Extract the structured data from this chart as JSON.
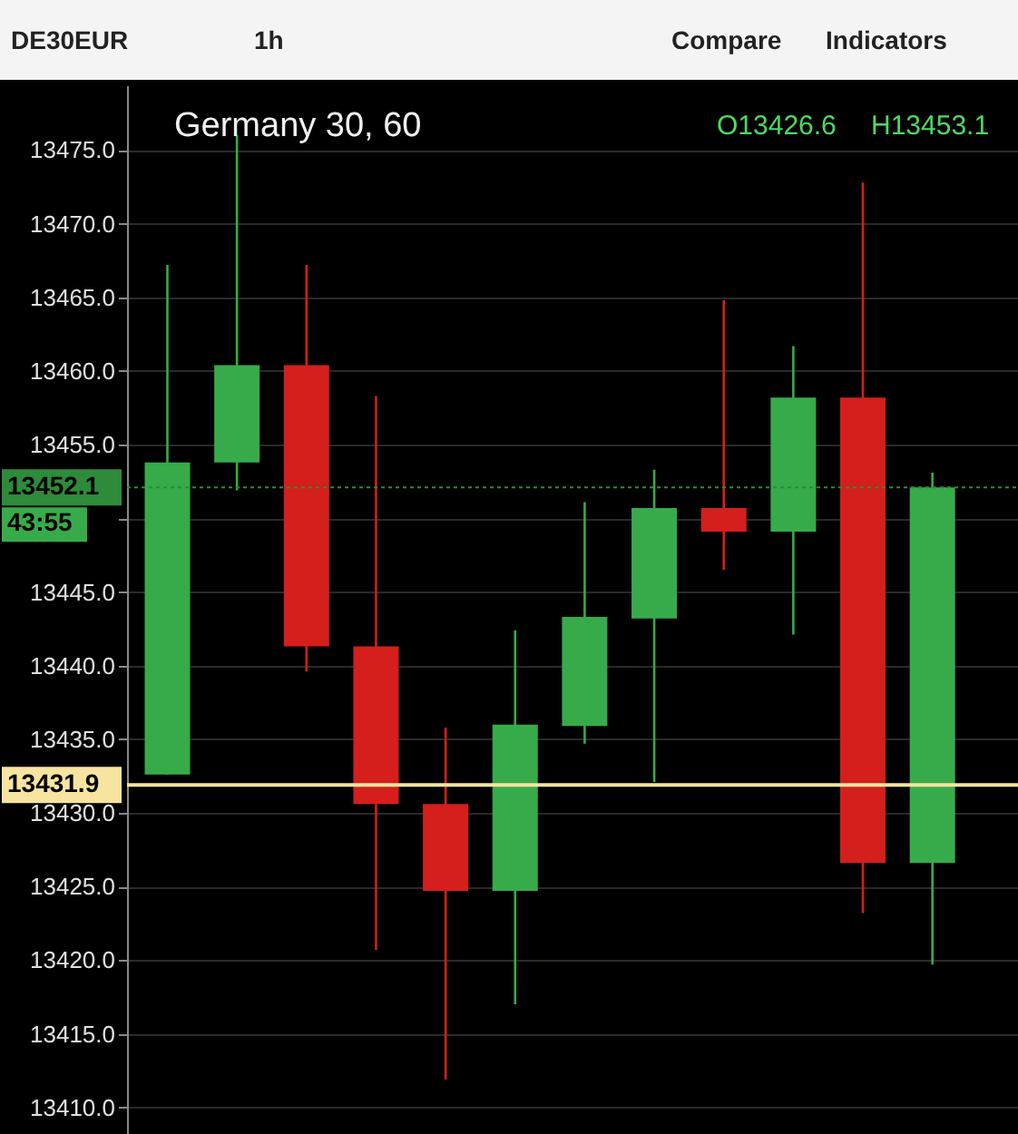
{
  "chart_data": {
    "type": "candlestick",
    "title": "Germany 30, 60",
    "annotations": [
      "DE30EUR",
      "1h",
      "Compare",
      "Indicators",
      "O13426.6",
      "H13453.1",
      "43:55"
    ],
    "categories": [
      null,
      null,
      null,
      null,
      null,
      null,
      null,
      null,
      null,
      null,
      null,
      null
    ],
    "ohlc": [
      [
        13432.6,
        13467.2,
        13432.6,
        13453.8
      ],
      [
        13453.8,
        13476.0,
        13451.9,
        13460.4
      ],
      [
        13460.4,
        13467.2,
        13439.6,
        13441.3
      ],
      [
        13441.3,
        13458.3,
        13420.7,
        13430.6
      ],
      [
        13430.6,
        13435.8,
        13411.9,
        13424.7
      ],
      [
        13424.7,
        13442.4,
        13417.0,
        13436.0
      ],
      [
        13435.9,
        13451.1,
        13434.7,
        13443.3
      ],
      [
        13443.2,
        13453.3,
        13432.1,
        13450.7
      ],
      [
        13450.7,
        13464.8,
        13446.5,
        13449.1
      ],
      [
        13449.1,
        13461.7,
        13442.1,
        13458.2
      ],
      [
        13458.2,
        13472.8,
        13423.2,
        13426.6
      ],
      [
        13426.6,
        13453.1,
        13419.7,
        13452.1
      ]
    ],
    "colors": [
      "#37ab4a",
      "#37ab4a",
      "#d41f1c",
      "#d41f1c",
      "#d41f1c",
      "#37ab4a",
      "#37ab4a",
      "#37ab4a",
      "#d41f1c",
      "#37ab4a",
      "#d41f1c",
      "#37ab4a"
    ],
    "ylim": [
      13408.2,
      13479.4
    ],
    "yticks": [
      {
        "value": 13410,
        "label": "13410.0"
      },
      {
        "value": 13415,
        "label": "13415.0"
      },
      {
        "value": 13420,
        "label": "13420.0"
      },
      {
        "value": 13425,
        "label": "13425.0"
      },
      {
        "value": 13430,
        "label": "13430.0"
      },
      {
        "value": 13435,
        "label": "13435.0"
      },
      {
        "value": 13440,
        "label": "13440.0"
      },
      {
        "value": 13445,
        "label": "13445.0"
      },
      {
        "value": 13450,
        "label": null
      },
      {
        "value": 13455,
        "label": "13455.0"
      },
      {
        "value": 13460,
        "label": "13460.0"
      },
      {
        "value": 13465,
        "label": "13465.0"
      },
      {
        "value": 13470,
        "label": "13470.0"
      },
      {
        "value": 13475,
        "label": "13475.0"
      }
    ],
    "ref_lines": [
      {
        "axis": "y",
        "value": 13452.1,
        "label": "13452.1",
        "color": "#2e8b3a",
        "line_style": "dotted"
      },
      {
        "axis": "y",
        "value": 13431.9,
        "label": "13431.9",
        "color": "#f7e4a0",
        "line_style": "solid"
      }
    ],
    "grid": "y",
    "tick_labels": "y"
  }
}
